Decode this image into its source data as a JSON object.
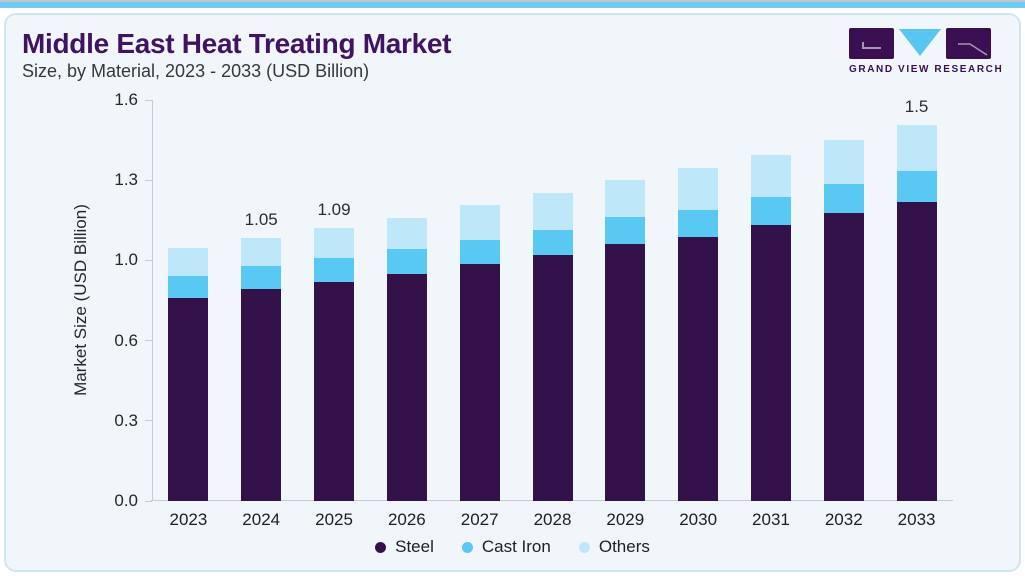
{
  "page": {
    "top_accent_line_color": "#c0c4cc",
    "top_accent_strip_color": "#6fcbf4",
    "background": "#ffffff"
  },
  "card": {
    "background": "#f0f6fa",
    "border_color": "#cfe6f2"
  },
  "header": {
    "title": "Middle East Heat Treating Market",
    "subtitle": "Size, by Material, 2023 - 2033 (USD Billion)",
    "title_color": "#401364"
  },
  "logo": {
    "wordmark": "GRAND VIEW RESEARCH",
    "block_color": "#3a1053",
    "triangle_color": "#58c6f1"
  },
  "chart_data": {
    "type": "bar",
    "stacked": true,
    "title": "Middle East Heat Treating Market Size, by Material, 2023 - 2033 (USD Billion)",
    "ylabel": "Market Size (USD Billion)",
    "xlabel": "",
    "ylim": [
      0,
      1.6
    ],
    "ytick_labels": [
      "0.0",
      "0.3",
      "0.6",
      "1.0",
      "1.3",
      "1.6"
    ],
    "grid": false,
    "legend_position": "bottom-center",
    "categories": [
      "2023",
      "2024",
      "2025",
      "2026",
      "2027",
      "2028",
      "2029",
      "2030",
      "2031",
      "2032",
      "2033"
    ],
    "series": [
      {
        "name": "Steel",
        "color": "#331149",
        "values": [
          0.81,
          0.845,
          0.875,
          0.907,
          0.946,
          0.983,
          1.025,
          1.054,
          1.1,
          1.151,
          1.193
        ]
      },
      {
        "name": "Cast Iron",
        "color": "#59c8f2",
        "values": [
          0.086,
          0.094,
          0.093,
          0.097,
          0.096,
          0.099,
          0.107,
          0.109,
          0.113,
          0.114,
          0.122
        ]
      },
      {
        "name": "Others",
        "color": "#bfe7fa",
        "values": [
          0.114,
          0.111,
          0.122,
          0.126,
          0.138,
          0.148,
          0.148,
          0.167,
          0.167,
          0.175,
          0.185
        ]
      }
    ],
    "totals": [
      1.01,
      1.05,
      1.09,
      1.13,
      1.18,
      1.23,
      1.28,
      1.33,
      1.38,
      1.44,
      1.5
    ],
    "bar_labels": {
      "2024": "1.05",
      "2025": "1.09",
      "2033": "1.5"
    }
  }
}
